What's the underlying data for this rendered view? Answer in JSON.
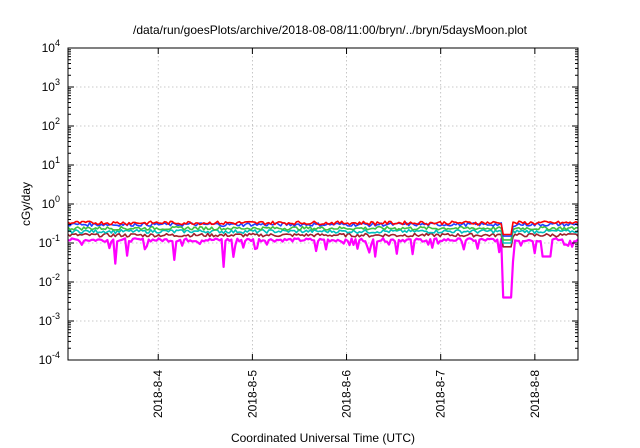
{
  "chart_data": {
    "type": "line",
    "title": "/data/run/goesPlots/archive/2018-08-08/11:00/bryn/../bryn/5daysMoon.plot",
    "xlabel": "Coordinated Universal Time (UTC)",
    "ylabel": "cGy/day",
    "y_scale": "log",
    "ylim": [
      0.0001,
      10000
    ],
    "xlim": [
      "2018-08-03 01:00",
      "2018-08-08 11:00"
    ],
    "y_ticks": [
      {
        "base": "10",
        "exp": "-4"
      },
      {
        "base": "10",
        "exp": "-3"
      },
      {
        "base": "10",
        "exp": "-2"
      },
      {
        "base": "10",
        "exp": "-1"
      },
      {
        "base": "10",
        "exp": "0"
      },
      {
        "base": "10",
        "exp": "1"
      },
      {
        "base": "10",
        "exp": "2"
      },
      {
        "base": "10",
        "exp": "3"
      },
      {
        "base": "10",
        "exp": "4"
      }
    ],
    "x_ticks": [
      {
        "label": "2018-8-4",
        "date": "2018-08-04 00:00"
      },
      {
        "label": "2018-8-5",
        "date": "2018-08-05 00:00"
      },
      {
        "label": "2018-8-6",
        "date": "2018-08-06 00:00"
      },
      {
        "label": "2018-8-7",
        "date": "2018-08-07 00:00"
      },
      {
        "label": "2018-8-8",
        "date": "2018-08-08 00:00"
      }
    ],
    "grid": true,
    "legend": "none",
    "series": [
      {
        "color": "#ff00ff",
        "baseline": 0.12
      },
      {
        "color": "#a0202a",
        "baseline": 0.16
      },
      {
        "color": "#00c0c0",
        "baseline": 0.2
      },
      {
        "color": "#40c040",
        "baseline": 0.24
      },
      {
        "color": "#2040ff",
        "baseline": 0.3
      },
      {
        "color": "#ff0000",
        "baseline": 0.33
      }
    ],
    "notable_dips": [
      {
        "date": "2018-08-07 17:00",
        "value": 0.004
      },
      {
        "date": "2018-08-08 03:00",
        "value": 0.045
      }
    ]
  }
}
